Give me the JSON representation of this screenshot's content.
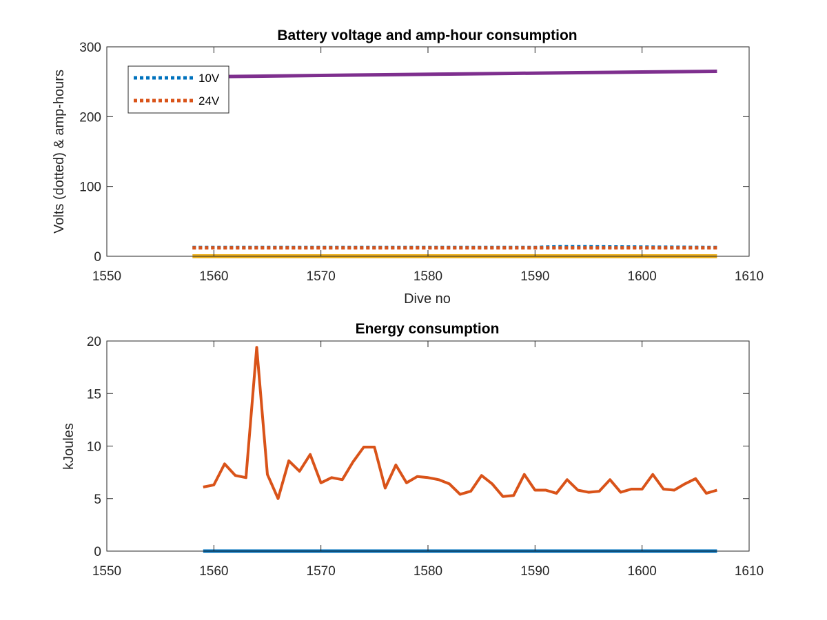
{
  "chart_data": [
    {
      "type": "line",
      "title": "Battery voltage and amp-hour consumption",
      "xlabel": "Dive no",
      "ylabel": "Volts (dotted) & amp-hours",
      "xlim": [
        1550,
        1610
      ],
      "ylim": [
        0,
        300
      ],
      "xticks": [
        "1550",
        "1560",
        "1570",
        "1580",
        "1590",
        "1600",
        "1610"
      ],
      "yticks": [
        "0",
        "100",
        "200",
        "300"
      ],
      "legend_location": "top-left",
      "series": [
        {
          "name": "10V",
          "style": "dotted",
          "color": "#0072BD",
          "x": [
            1558,
            1590,
            1592,
            1595,
            1607
          ],
          "y": [
            12.5,
            12.5,
            13.5,
            13.5,
            12.5
          ]
        },
        {
          "name": "24V",
          "style": "dotted",
          "color": "#D95319",
          "x": [
            1558,
            1607
          ],
          "y": [
            12,
            12
          ]
        },
        {
          "style": "solid",
          "color": "#EDB120",
          "x": [
            1558,
            1607
          ],
          "y": [
            0,
            0
          ]
        },
        {
          "style": "solid",
          "color": "#7E2F8E",
          "x": [
            1558,
            1564,
            1570,
            1576,
            1582,
            1588,
            1594,
            1600,
            1607
          ],
          "y": [
            257,
            258,
            259,
            260,
            261,
            262,
            263,
            264,
            265
          ]
        }
      ]
    },
    {
      "type": "line",
      "title": "Energy consumption",
      "xlabel": "",
      "ylabel": "kJoules",
      "xlim": [
        1550,
        1610
      ],
      "ylim": [
        0,
        20
      ],
      "xticks": [
        "1550",
        "1560",
        "1570",
        "1580",
        "1590",
        "1600",
        "1610"
      ],
      "yticks": [
        "0",
        "5",
        "10",
        "15",
        "20"
      ],
      "series": [
        {
          "style": "solid",
          "color": "#0072BD",
          "x": [
            1559,
            1607
          ],
          "y": [
            0,
            0
          ]
        },
        {
          "style": "solid",
          "color": "#D95319",
          "x": [
            1559,
            1560,
            1561,
            1562,
            1563,
            1564,
            1565,
            1566,
            1567,
            1568,
            1569,
            1570,
            1571,
            1572,
            1573,
            1574,
            1575,
            1576,
            1577,
            1578,
            1579,
            1580,
            1581,
            1582,
            1583,
            1584,
            1585,
            1586,
            1587,
            1588,
            1589,
            1590,
            1591,
            1592,
            1593,
            1594,
            1595,
            1596,
            1597,
            1598,
            1599,
            1600,
            1601,
            1602,
            1603,
            1604,
            1605,
            1606,
            1607
          ],
          "y": [
            6.1,
            6.3,
            8.3,
            7.2,
            7.0,
            19.4,
            7.3,
            5.0,
            8.6,
            7.6,
            9.2,
            6.5,
            7.0,
            6.8,
            8.5,
            9.9,
            9.9,
            6.0,
            8.2,
            6.5,
            7.1,
            7.0,
            6.8,
            6.4,
            5.4,
            5.7,
            7.2,
            6.4,
            5.2,
            5.3,
            7.3,
            5.8,
            5.8,
            5.5,
            6.8,
            5.8,
            5.6,
            5.7,
            6.8,
            5.6,
            5.9,
            5.9,
            7.3,
            5.9,
            5.8,
            6.4,
            6.9,
            5.5,
            5.8
          ]
        }
      ]
    }
  ]
}
